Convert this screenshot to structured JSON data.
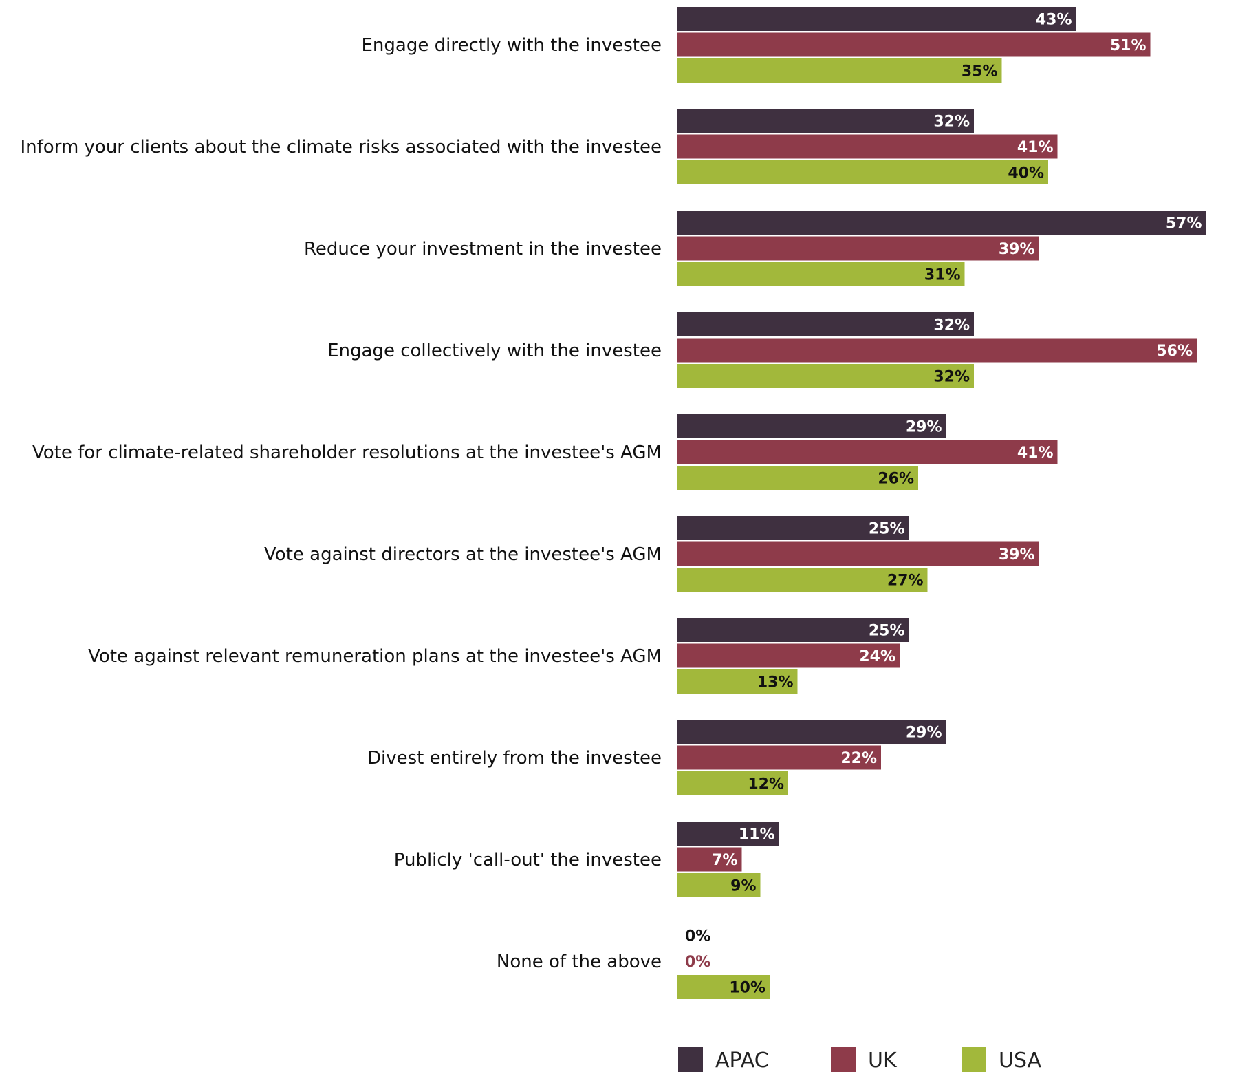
{
  "chart_data": {
    "type": "bar",
    "orientation": "horizontal",
    "title": "",
    "xlabel": "",
    "ylabel": "",
    "xlim": [
      0,
      60
    ],
    "grid": false,
    "legend_position": "bottom",
    "value_suffix": "%",
    "categories": [
      "Engage directly with the investee",
      "Inform your clients about the climate risks associated with the investee",
      "Reduce your investment in the investee",
      "Engage collectively with the investee",
      "Vote for climate-related shareholder resolutions at the investee's AGM",
      "Vote against directors at the investee's AGM",
      "Vote against relevant remuneration plans at the investee's AGM",
      "Divest entirely from the investee",
      "Publicly 'call-out' the investee",
      "None of the above"
    ],
    "series": [
      {
        "name": "APAC",
        "color": "#3f3040",
        "label_color": "#ffffff",
        "zero_label_color": "#111111",
        "values": [
          43,
          32,
          57,
          32,
          29,
          25,
          25,
          29,
          11,
          0
        ]
      },
      {
        "name": "UK",
        "color": "#8e3b4a",
        "label_color": "#ffffff",
        "zero_label_color": "#8e3b4a",
        "values": [
          51,
          41,
          39,
          56,
          41,
          39,
          24,
          22,
          7,
          0
        ]
      },
      {
        "name": "USA",
        "color": "#a2b83b",
        "label_color": "#111111",
        "zero_label_color": "#111111",
        "values": [
          35,
          40,
          31,
          32,
          26,
          27,
          13,
          12,
          9,
          10
        ]
      }
    ]
  }
}
